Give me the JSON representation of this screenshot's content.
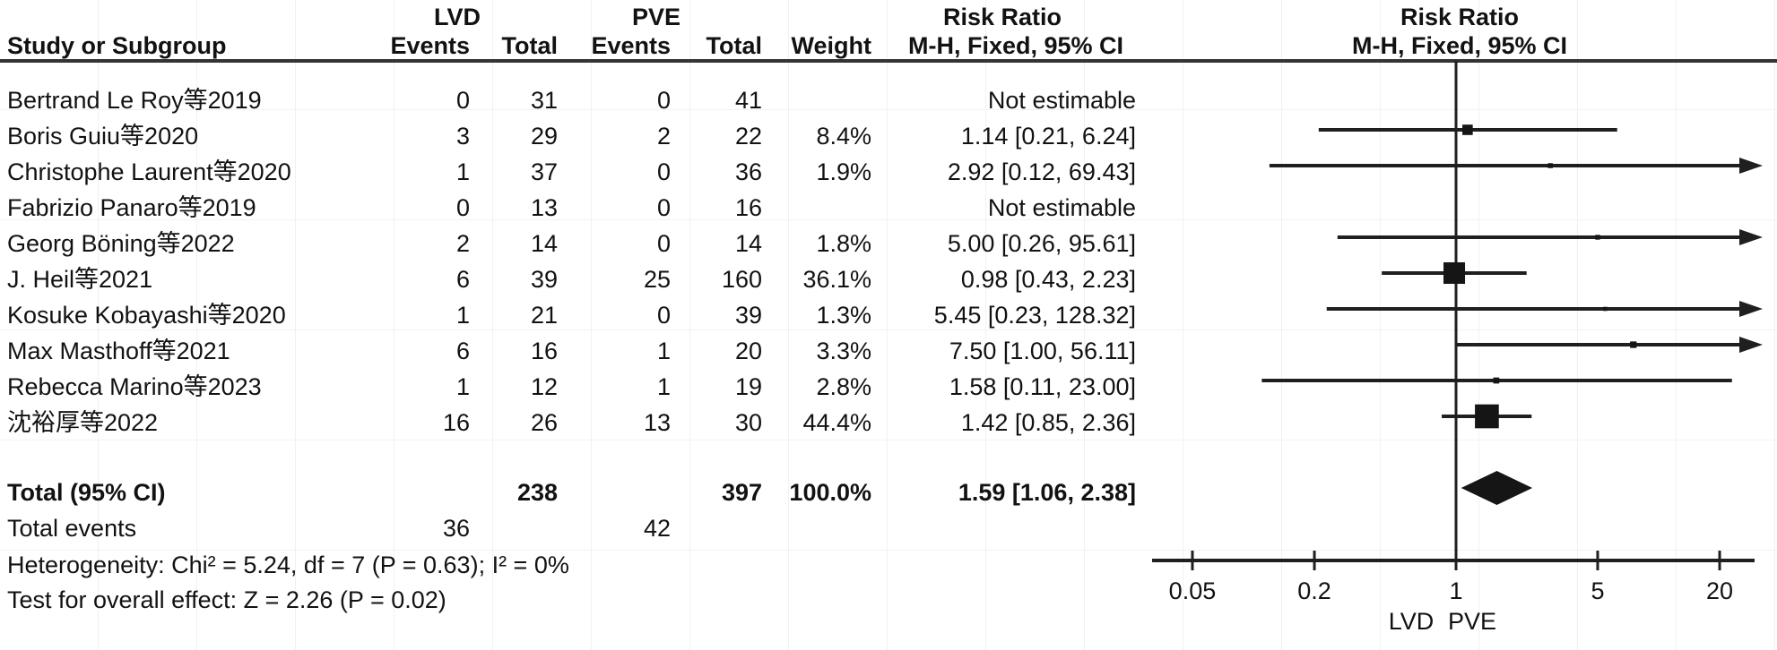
{
  "header": {
    "study_col": "Study or Subgroup",
    "group1": "LVD",
    "group2": "PVE",
    "events_col": "Events",
    "total_col": "Total",
    "weight_col": "Weight",
    "rr_title": "Risk Ratio",
    "rr_subtitle": "M-H, Fixed, 95% CI"
  },
  "rows": [
    {
      "study": "Bertrand Le Roy等2019",
      "e1": "0",
      "t1": "31",
      "e2": "0",
      "t2": "41",
      "weight": "",
      "ci": "Not estimable"
    },
    {
      "study": "Boris Guiu等2020",
      "e1": "3",
      "t1": "29",
      "e2": "2",
      "t2": "22",
      "weight": "8.4%",
      "ci": "1.14 [0.21, 6.24]"
    },
    {
      "study": "Christophe Laurent等2020",
      "e1": "1",
      "t1": "37",
      "e2": "0",
      "t2": "36",
      "weight": "1.9%",
      "ci": "2.92 [0.12, 69.43]"
    },
    {
      "study": "Fabrizio Panaro等2019",
      "e1": "0",
      "t1": "13",
      "e2": "0",
      "t2": "16",
      "weight": "",
      "ci": "Not estimable"
    },
    {
      "study": "Georg Böning等2022",
      "e1": "2",
      "t1": "14",
      "e2": "0",
      "t2": "14",
      "weight": "1.8%",
      "ci": "5.00 [0.26, 95.61]"
    },
    {
      "study": "J. Heil等2021",
      "e1": "6",
      "t1": "39",
      "e2": "25",
      "t2": "160",
      "weight": "36.1%",
      "ci": "0.98 [0.43, 2.23]"
    },
    {
      "study": "Kosuke Kobayashi等2020",
      "e1": "1",
      "t1": "21",
      "e2": "0",
      "t2": "39",
      "weight": "1.3%",
      "ci": "5.45 [0.23, 128.32]"
    },
    {
      "study": "Max Masthoff等2021",
      "e1": "6",
      "t1": "16",
      "e2": "1",
      "t2": "20",
      "weight": "3.3%",
      "ci": "7.50 [1.00, 56.11]"
    },
    {
      "study": "Rebecca Marino等2023",
      "e1": "1",
      "t1": "12",
      "e2": "1",
      "t2": "19",
      "weight": "2.8%",
      "ci": "1.58 [0.11, 23.00]"
    },
    {
      "study": "沈裕厚等2022",
      "e1": "16",
      "t1": "26",
      "e2": "13",
      "t2": "30",
      "weight": "44.4%",
      "ci": "1.42 [0.85, 2.36]"
    }
  ],
  "totals": {
    "label": "Total (95% CI)",
    "t1": "238",
    "t2": "397",
    "weight": "100.0%",
    "ci": "1.59 [1.06, 2.38]",
    "events_label": "Total events",
    "e1": "36",
    "e2": "42",
    "heterogeneity": "Heterogeneity: Chi² = 5.24, df = 7 (P = 0.63); I² = 0%",
    "overall_effect": "Test for overall effect: Z = 2.26 (P = 0.02)"
  },
  "colors": {
    "ink": "#1f1f1f",
    "marker": "#151515"
  },
  "chart_data": {
    "type": "forest",
    "title": "Risk Ratio",
    "method": "M-H, Fixed, 95% CI",
    "x_scale": "log",
    "x_ticks": [
      0.05,
      0.2,
      1,
      5,
      20
    ],
    "x_tick_labels": [
      "0.05",
      "0.2",
      "1",
      "5",
      "20"
    ],
    "x_axis_range": [
      0.03,
      30
    ],
    "null_value": 1,
    "favours_left": "LVD",
    "favours_right": "PVE",
    "legend_position": "none",
    "grid": false,
    "studies": [
      {
        "name": "Bertrand Le Roy等2019",
        "rr": null,
        "ci_low": null,
        "ci_high": null,
        "weight": null,
        "estimable": false
      },
      {
        "name": "Boris Guiu等2020",
        "rr": 1.14,
        "ci_low": 0.21,
        "ci_high": 6.24,
        "weight": 8.4,
        "estimable": true
      },
      {
        "name": "Christophe Laurent等2020",
        "rr": 2.92,
        "ci_low": 0.12,
        "ci_high": 69.43,
        "weight": 1.9,
        "estimable": true
      },
      {
        "name": "Fabrizio Panaro等2019",
        "rr": null,
        "ci_low": null,
        "ci_high": null,
        "weight": null,
        "estimable": false
      },
      {
        "name": "Georg Böning等2022",
        "rr": 5.0,
        "ci_low": 0.26,
        "ci_high": 95.61,
        "weight": 1.8,
        "estimable": true
      },
      {
        "name": "J. Heil等2021",
        "rr": 0.98,
        "ci_low": 0.43,
        "ci_high": 2.23,
        "weight": 36.1,
        "estimable": true
      },
      {
        "name": "Kosuke Kobayashi等2020",
        "rr": 5.45,
        "ci_low": 0.23,
        "ci_high": 128.32,
        "weight": 1.3,
        "estimable": true
      },
      {
        "name": "Max Masthoff等2021",
        "rr": 7.5,
        "ci_low": 1.0,
        "ci_high": 56.11,
        "weight": 3.3,
        "estimable": true
      },
      {
        "name": "Rebecca Marino等2023",
        "rr": 1.58,
        "ci_low": 0.11,
        "ci_high": 23.0,
        "weight": 2.8,
        "estimable": true
      },
      {
        "name": "沈裕厚等2022",
        "rr": 1.42,
        "ci_low": 0.85,
        "ci_high": 2.36,
        "weight": 44.4,
        "estimable": true
      }
    ],
    "total": {
      "rr": 1.59,
      "ci_low": 1.06,
      "ci_high": 2.38,
      "weight": 100.0
    }
  }
}
